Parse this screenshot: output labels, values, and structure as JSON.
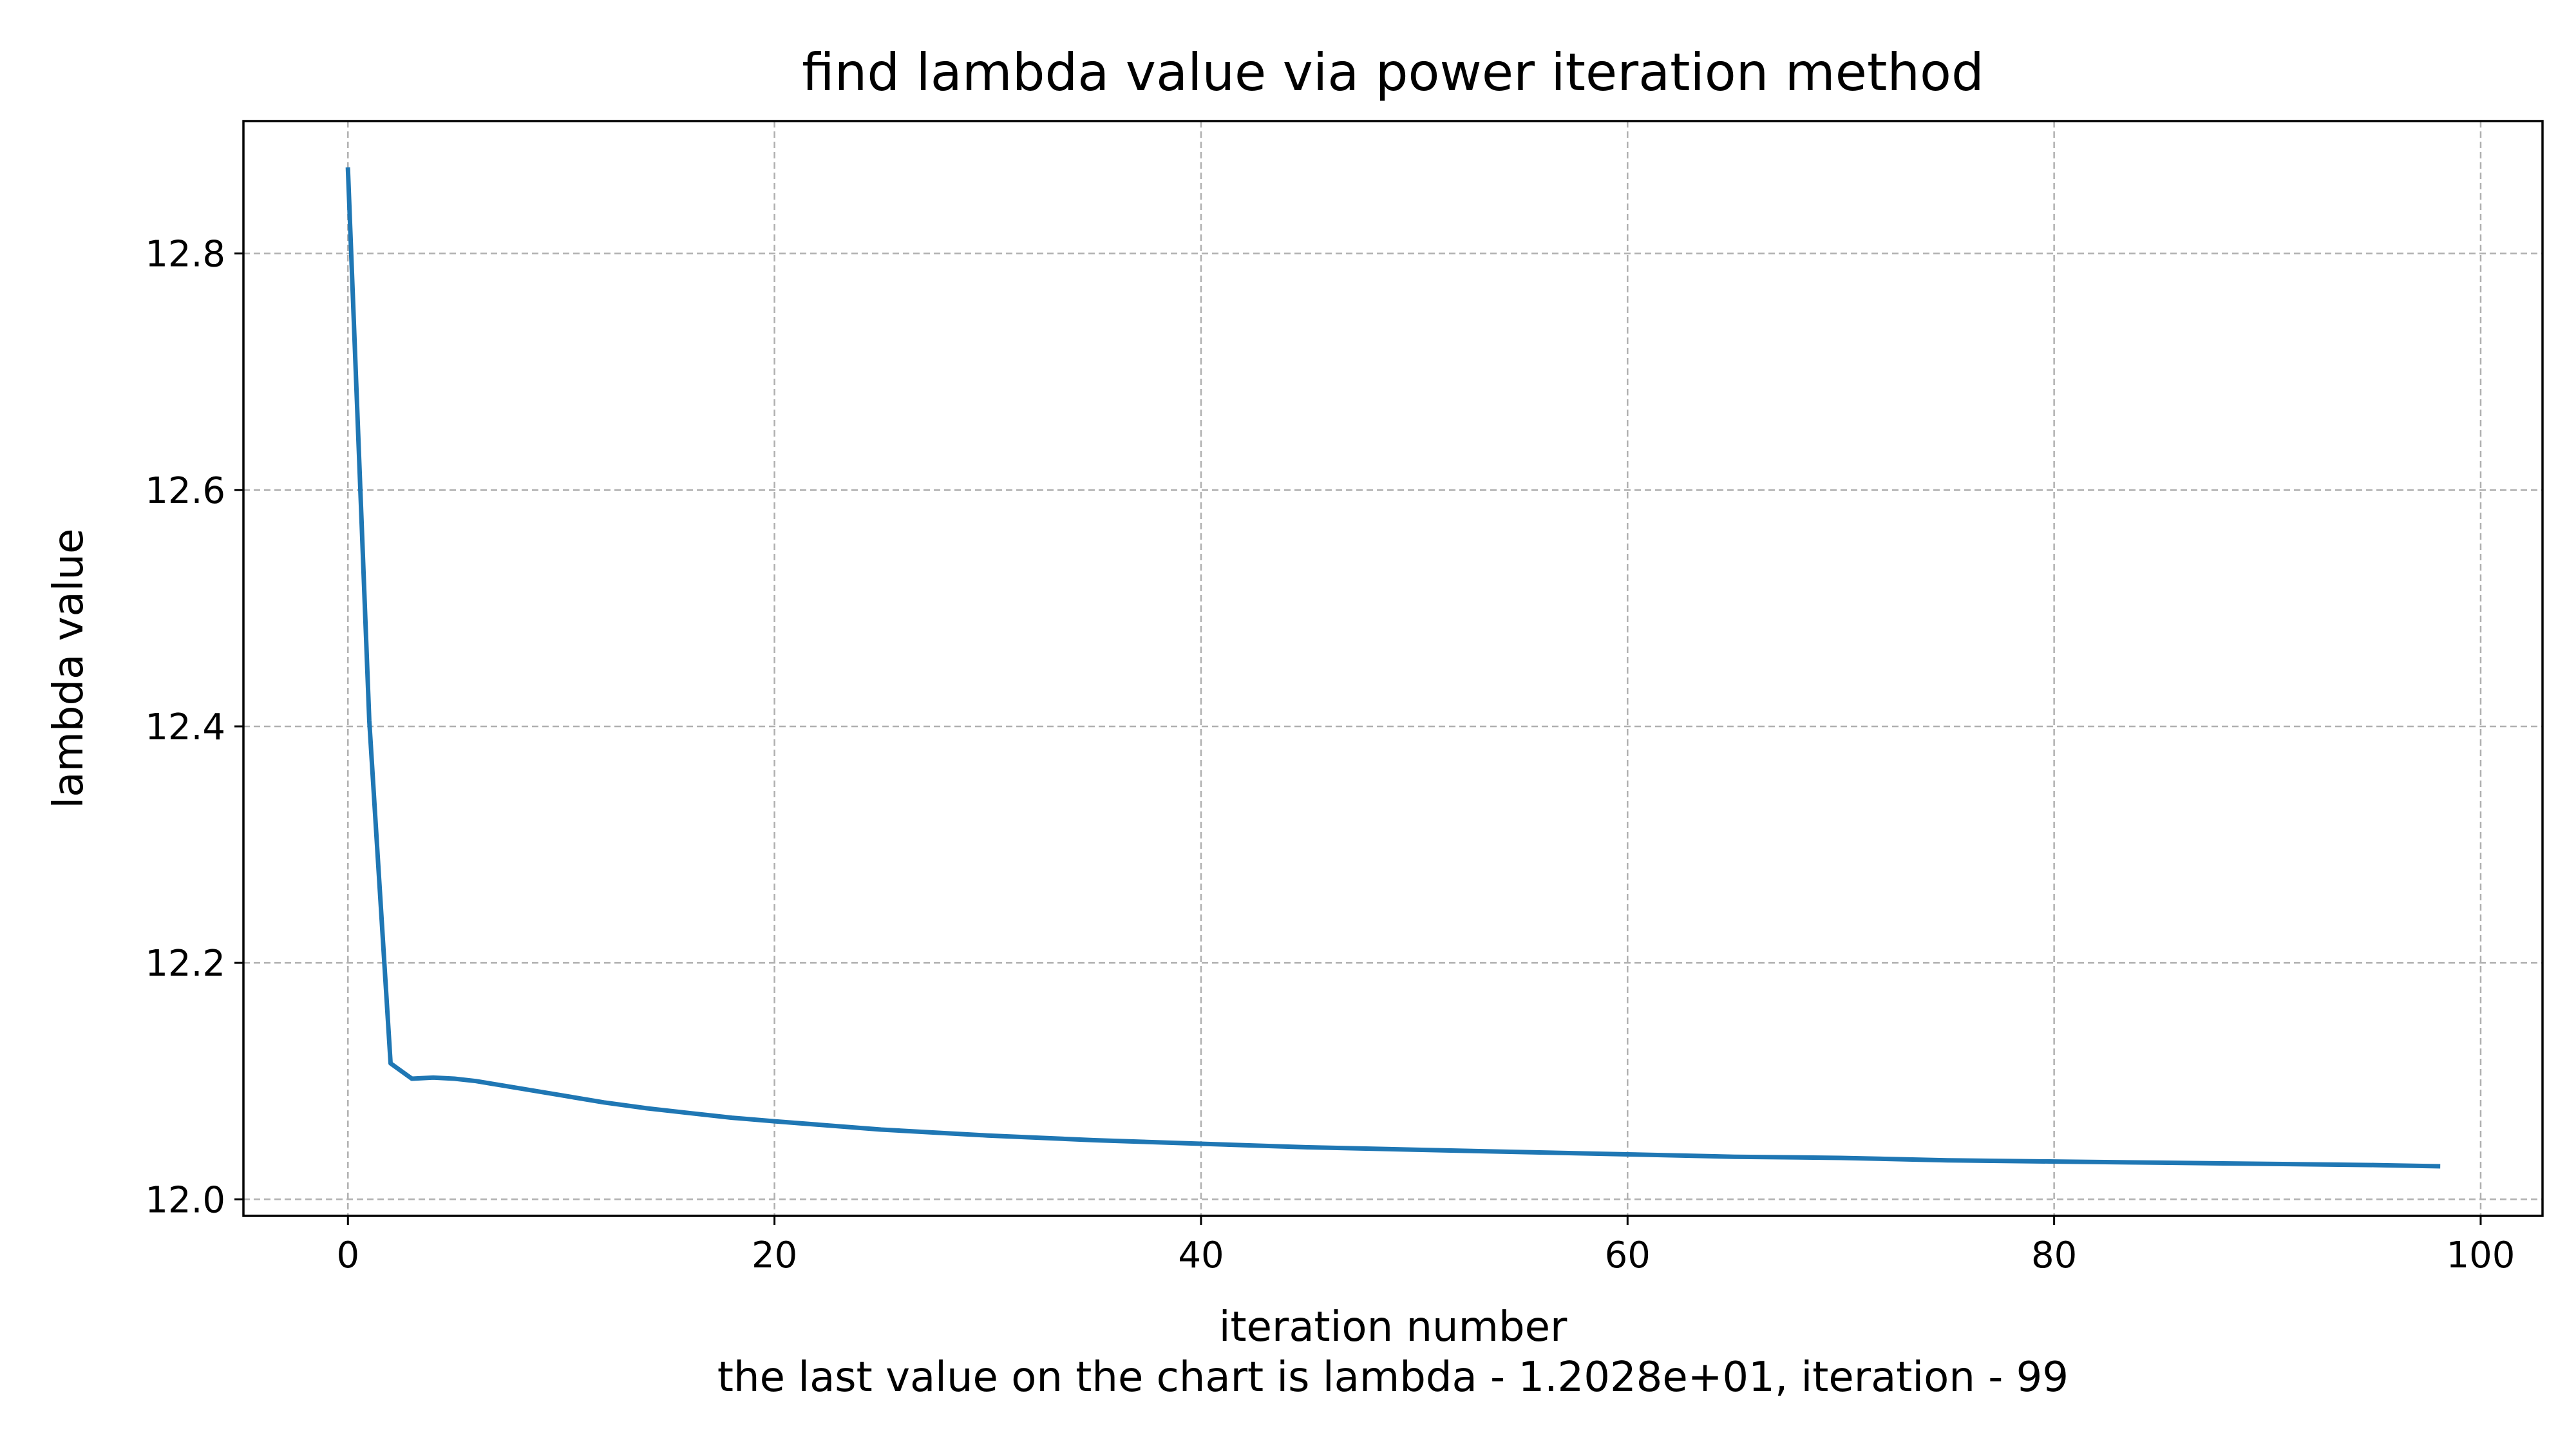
{
  "chart_data": {
    "type": "line",
    "title": "find lambda value via power iteration method",
    "xlabel": "iteration number",
    "xlabel_note": "the last value on the chart is lambda - 1.2028e+01, iteration - 99",
    "ylabel": "lambda value",
    "xlim": [
      -4.9,
      102.9
    ],
    "ylim": [
      11.986,
      12.912
    ],
    "xticks": [
      0,
      20,
      40,
      60,
      80,
      100
    ],
    "xtick_labels": [
      "0",
      "20",
      "40",
      "60",
      "80",
      "100"
    ],
    "yticks": [
      12.0,
      12.2,
      12.4,
      12.6,
      12.8
    ],
    "ytick_labels": [
      "12.0",
      "12.2",
      "12.4",
      "12.6",
      "12.8"
    ],
    "grid": true,
    "line_color": "#1f77b4",
    "series": [
      {
        "x": [
          0,
          1,
          2,
          3,
          4,
          5,
          6,
          7,
          8,
          9,
          10,
          12,
          14,
          16,
          18,
          20,
          25,
          30,
          35,
          40,
          45,
          50,
          55,
          60,
          65,
          70,
          75,
          80,
          85,
          90,
          95,
          98
        ],
        "y": [
          12.871,
          12.405,
          12.115,
          12.102,
          12.103,
          12.102,
          12.1,
          12.097,
          12.094,
          12.091,
          12.088,
          12.082,
          12.077,
          12.073,
          12.069,
          12.066,
          12.059,
          12.054,
          12.05,
          12.047,
          12.044,
          12.042,
          12.04,
          12.038,
          12.036,
          12.035,
          12.033,
          12.032,
          12.031,
          12.03,
          12.029,
          12.028
        ]
      }
    ]
  }
}
